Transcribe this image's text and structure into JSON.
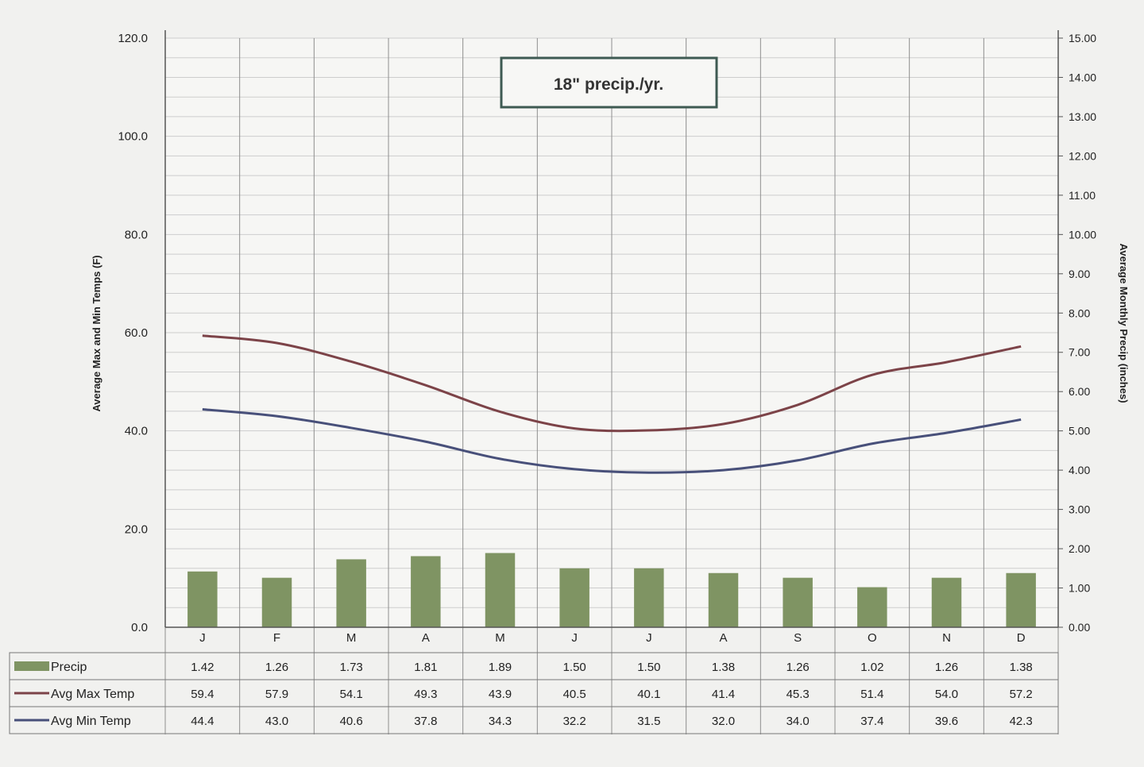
{
  "chart_data": {
    "type": "bar",
    "annotation": "18\" precip./yr.",
    "categories": [
      "J",
      "F",
      "M",
      "A",
      "M",
      "J",
      "J",
      "A",
      "S",
      "O",
      "N",
      "D"
    ],
    "y_left": {
      "label": "Average Max and Min Temps (F)",
      "ticks": [
        "0.0",
        "20.0",
        "40.0",
        "60.0",
        "80.0",
        "100.0",
        "120.0"
      ],
      "range": [
        0,
        120
      ]
    },
    "y_right": {
      "label": "Average Monthly Precip (inches)",
      "ticks": [
        "0.00",
        "1.00",
        "2.00",
        "3.00",
        "4.00",
        "5.00",
        "6.00",
        "7.00",
        "8.00",
        "9.00",
        "10.00",
        "11.00",
        "12.00",
        "13.00",
        "14.00",
        "15.00"
      ],
      "range": [
        0,
        15
      ]
    },
    "series": [
      {
        "name": "Precip",
        "type": "bar",
        "axis": "right",
        "color": "#7f9463",
        "values": [
          1.42,
          1.26,
          1.73,
          1.81,
          1.89,
          1.5,
          1.5,
          1.38,
          1.26,
          1.02,
          1.26,
          1.38
        ],
        "labels": [
          "1.42",
          "1.26",
          "1.73",
          "1.81",
          "1.89",
          "1.50",
          "1.50",
          "1.38",
          "1.26",
          "1.02",
          "1.26",
          "1.38"
        ]
      },
      {
        "name": "Avg Max Temp",
        "type": "line",
        "axis": "left",
        "color": "#7c4348",
        "values": [
          59.4,
          57.9,
          54.1,
          49.3,
          43.9,
          40.5,
          40.1,
          41.4,
          45.3,
          51.4,
          54.0,
          57.2
        ],
        "labels": [
          "59.4",
          "57.9",
          "54.1",
          "49.3",
          "43.9",
          "40.5",
          "40.1",
          "41.4",
          "45.3",
          "51.4",
          "54.0",
          "57.2"
        ]
      },
      {
        "name": "Avg Min Temp",
        "type": "line",
        "axis": "left",
        "color": "#48507a",
        "values": [
          44.4,
          43.0,
          40.6,
          37.8,
          34.3,
          32.2,
          31.5,
          32.0,
          34.0,
          37.4,
          39.6,
          42.3
        ],
        "labels": [
          "44.4",
          "43.0",
          "40.6",
          "37.8",
          "34.3",
          "32.2",
          "31.5",
          "32.0",
          "34.0",
          "37.4",
          "39.6",
          "42.3"
        ]
      }
    ],
    "grid": true,
    "legend": "data table below chart"
  }
}
